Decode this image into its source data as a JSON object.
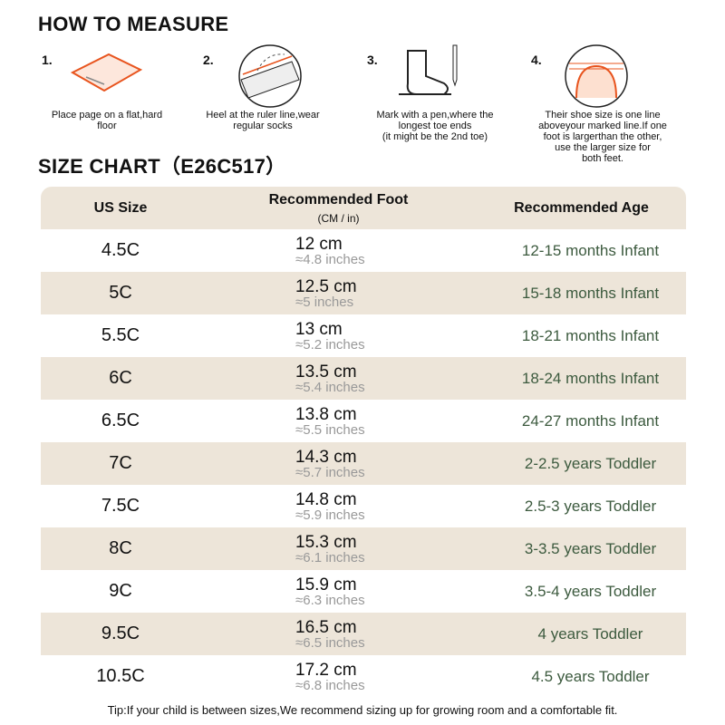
{
  "measure": {
    "title": "HOW TO MEASURE",
    "steps": [
      {
        "number": "1.",
        "caption": [
          "Place page on a flat,hard",
          "floor"
        ]
      },
      {
        "number": "2.",
        "caption": [
          "Heel at the ruler line,wear",
          "regular socks"
        ]
      },
      {
        "number": "3.",
        "caption": [
          "Mark with a pen,where the",
          "longest toe ends",
          "(it might be the 2nd toe)"
        ]
      },
      {
        "number": "4.",
        "caption": [
          "Their shoe size is one line",
          "aboveyour marked line.If one",
          "foot is largerthan the other,",
          "use the larger size for",
          "both feet."
        ]
      }
    ]
  },
  "chart": {
    "title": "SIZE CHART（E26C517）",
    "header": {
      "size": "US Size",
      "foot": "Recommended Foot",
      "foot_sub": "(CM / in)",
      "age": "Recommended Age"
    },
    "rows": [
      [
        "4.5C",
        "12 cm",
        "≈4.8 inches",
        "12-15 months Infant"
      ],
      [
        "5C",
        "12.5 cm",
        "≈5 inches",
        "15-18 months Infant"
      ],
      [
        "5.5C",
        "13 cm",
        "≈5.2 inches",
        "18-21 months Infant"
      ],
      [
        "6C",
        "13.5 cm",
        "≈5.4 inches",
        "18-24 months Infant"
      ],
      [
        "6.5C",
        "13.8 cm",
        "≈5.5 inches",
        "24-27 months Infant"
      ],
      [
        "7C",
        "14.3 cm",
        "≈5.7 inches",
        "2-2.5 years Toddler"
      ],
      [
        "7.5C",
        "14.8 cm",
        "≈5.9 inches",
        "2.5-3 years Toddler"
      ],
      [
        "8C",
        "15.3 cm",
        "≈6.1 inches",
        "3-3.5 years Toddler"
      ],
      [
        "9C",
        "15.9 cm",
        "≈6.3 inches",
        "3.5-4 years Toddler"
      ],
      [
        "9.5C",
        "16.5 cm",
        "≈6.5 inches",
        "4 years Toddler"
      ],
      [
        "10.5C",
        "17.2 cm",
        "≈6.8 inches",
        "4.5 years Toddler"
      ]
    ]
  },
  "tip": "Tip:If your child is between sizes,We recommend sizing up for growing room and a comfortable fit."
}
